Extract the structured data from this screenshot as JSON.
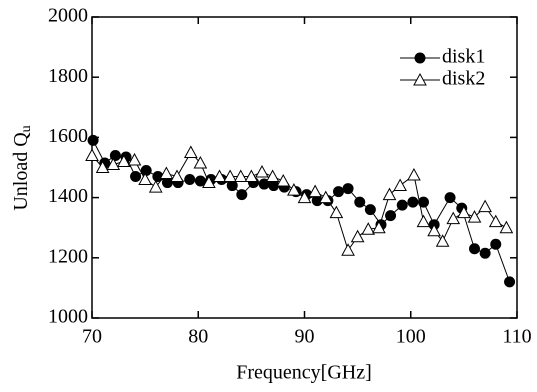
{
  "chart_data": {
    "type": "line",
    "x_label": "Frequency[GHz]",
    "y_label": "Unload Q",
    "y_label_subscript": "u",
    "xlim": [
      70,
      110
    ],
    "xticks": [
      70,
      80,
      90,
      100,
      110
    ],
    "ylim": [
      1000,
      2000
    ],
    "yticks": [
      1000,
      1200,
      1400,
      1600,
      1800,
      2000
    ],
    "legend": "upper right",
    "series": [
      {
        "name": "disk1",
        "color": "#000000",
        "marker": "circle",
        "x": [
          70.1,
          71.2,
          72.2,
          73.2,
          74.1,
          75.1,
          76.2,
          77.1,
          78.1,
          79.2,
          80.2,
          81.2,
          82.2,
          83.2,
          84.1,
          85.2,
          86.2,
          87.1,
          88.1,
          89.2,
          90.2,
          91.2,
          92.2,
          93.2,
          94.1,
          95.2,
          96.2,
          97.2,
          98.1,
          99.2,
          100.2,
          101.2,
          102.2,
          103.7,
          104.8,
          106.0,
          107.0,
          108.0,
          109.3
        ],
        "values": [
          1590,
          1515,
          1540,
          1535,
          1470,
          1490,
          1470,
          1450,
          1450,
          1460,
          1455,
          1460,
          1460,
          1440,
          1410,
          1450,
          1445,
          1440,
          1435,
          1420,
          1410,
          1390,
          1390,
          1420,
          1430,
          1385,
          1360,
          1310,
          1340,
          1375,
          1385,
          1385,
          1310,
          1400,
          1365,
          1230,
          1215,
          1245,
          1120
        ]
      },
      {
        "name": "disk2",
        "color": "#000000",
        "marker": "triangle",
        "x": [
          70.0,
          71.0,
          72.0,
          73.0,
          74.0,
          75.0,
          76.0,
          77.0,
          78.0,
          79.3,
          80.2,
          81.0,
          82.0,
          83.0,
          84.0,
          85.0,
          86.0,
          87.0,
          88.0,
          89.0,
          90.0,
          91.0,
          92.0,
          93.0,
          94.1,
          95.0,
          96.0,
          97.0,
          98.0,
          99.0,
          100.3,
          101.2,
          102.2,
          103.0,
          104.0,
          105.0,
          106.0,
          107.0,
          108.0,
          109.0
        ],
        "values": [
          1540,
          1500,
          1510,
          1520,
          1525,
          1460,
          1435,
          1480,
          1470,
          1550,
          1515,
          1450,
          1470,
          1470,
          1470,
          1470,
          1485,
          1470,
          1455,
          1425,
          1400,
          1420,
          1400,
          1350,
          1225,
          1270,
          1295,
          1300,
          1410,
          1440,
          1475,
          1320,
          1290,
          1255,
          1330,
          1350,
          1335,
          1370,
          1320,
          1300
        ]
      }
    ]
  }
}
